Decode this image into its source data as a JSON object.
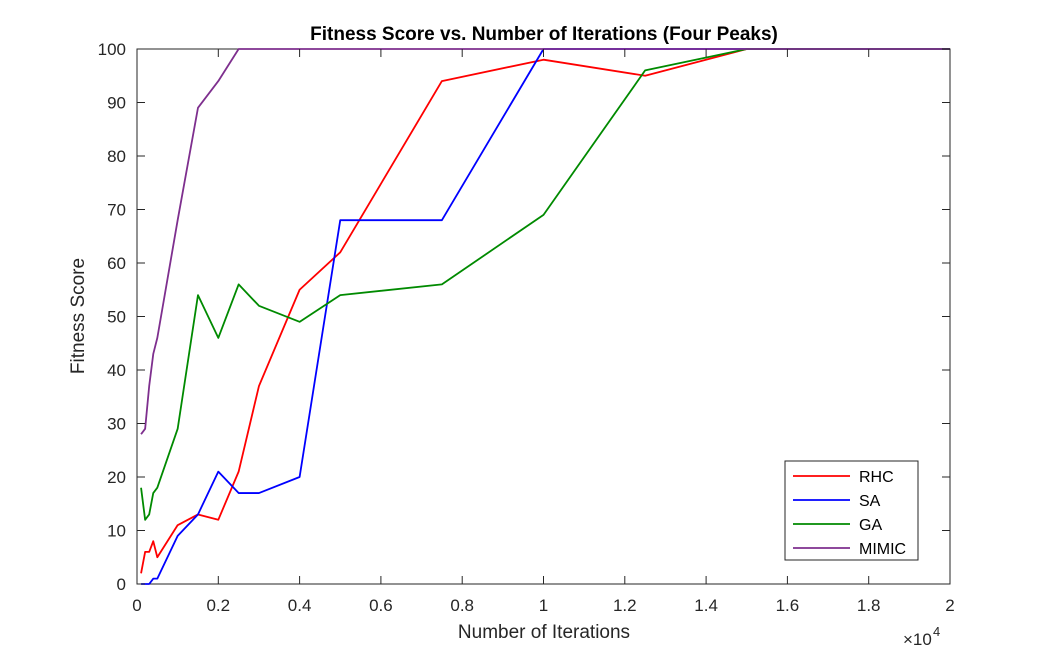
{
  "chart_data": {
    "type": "line",
    "title": "Fitness Score vs. Number of Iterations (Four Peaks)",
    "xlabel": "Number of Iterations",
    "ylabel": "Fitness Score",
    "x_multiplier_label": "×10",
    "x_multiplier_exponent": "4",
    "xlim": [
      0,
      20000
    ],
    "ylim": [
      0,
      100
    ],
    "xticks": [
      0,
      2000,
      4000,
      6000,
      8000,
      10000,
      12000,
      14000,
      16000,
      18000,
      20000
    ],
    "xtick_labels": [
      "0",
      "0.2",
      "0.4",
      "0.6",
      "0.8",
      "1",
      "1.2",
      "1.4",
      "1.6",
      "1.8",
      "2"
    ],
    "yticks": [
      0,
      10,
      20,
      30,
      40,
      50,
      60,
      70,
      80,
      90,
      100
    ],
    "ytick_labels": [
      "0",
      "10",
      "20",
      "30",
      "40",
      "50",
      "60",
      "70",
      "80",
      "90",
      "100"
    ],
    "grid": false,
    "legend_position": "bottom-right",
    "series": [
      {
        "name": "RHC",
        "color": "#ff0000",
        "x": [
          100,
          200,
          300,
          400,
          500,
          1000,
          1500,
          2000,
          2500,
          3000,
          4000,
          5000,
          7500,
          10000,
          12500,
          15000,
          17500,
          20000
        ],
        "y": [
          2,
          6,
          6,
          8,
          5,
          11,
          13,
          12,
          21,
          37,
          55,
          62,
          94,
          98,
          95,
          100,
          100,
          100
        ]
      },
      {
        "name": "SA",
        "color": "#0000ff",
        "x": [
          100,
          200,
          300,
          400,
          500,
          1000,
          1500,
          2000,
          2500,
          3000,
          4000,
          5000,
          7500,
          10000,
          12500,
          15000,
          17500,
          20000
        ],
        "y": [
          0,
          0,
          0,
          1,
          1,
          9,
          13,
          21,
          17,
          17,
          20,
          68,
          68,
          100,
          100,
          100,
          100,
          100
        ]
      },
      {
        "name": "GA",
        "color": "#008a00",
        "x": [
          100,
          200,
          300,
          400,
          500,
          1000,
          1500,
          2000,
          2500,
          3000,
          4000,
          5000,
          7500,
          10000,
          12500,
          15000,
          17500,
          20000
        ],
        "y": [
          18,
          12,
          13,
          17,
          18,
          29,
          54,
          46,
          56,
          52,
          49,
          54,
          56,
          69,
          96,
          100,
          100,
          100
        ]
      },
      {
        "name": "MIMIC",
        "color": "#7e2f8e",
        "x": [
          100,
          200,
          300,
          400,
          500,
          1000,
          1500,
          2000,
          2500,
          3000,
          4000,
          5000,
          7500,
          10000,
          12500,
          15000,
          17500,
          20000
        ],
        "y": [
          28,
          29,
          37,
          43,
          46,
          68,
          89,
          94,
          100,
          100,
          100,
          100,
          100,
          100,
          100,
          100,
          100,
          100
        ]
      }
    ]
  }
}
